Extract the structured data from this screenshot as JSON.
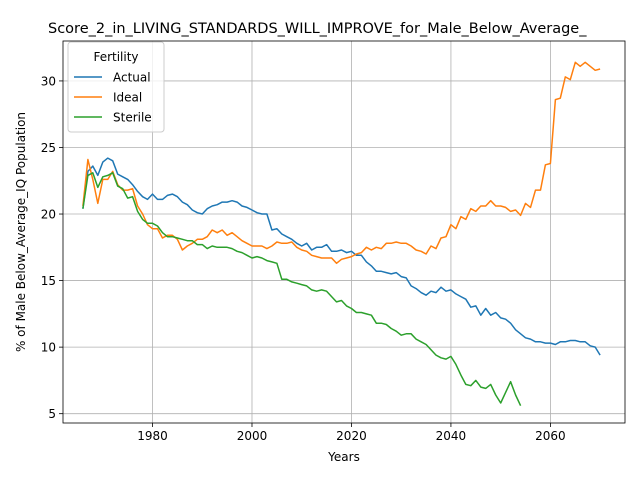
{
  "chart_data": {
    "type": "line",
    "title": "Score_2_in_LIVING_STANDARDS_WILL_IMPROVE_for_Male_Below_Average_",
    "xlabel": "Years",
    "ylabel": "% of Male Below_Average_IQ Population",
    "xlim": [
      1962,
      2075
    ],
    "ylim": [
      4.3,
      33.0
    ],
    "xticks": [
      1980,
      2000,
      2020,
      2040,
      2060
    ],
    "yticks": [
      5,
      10,
      15,
      20,
      25,
      30
    ],
    "grid": true,
    "legend": {
      "title": "Fertility",
      "placement": "upper-left"
    },
    "series": [
      {
        "name": "Actual",
        "color": "#1f77b4",
        "x": [
          1966,
          1967,
          1968,
          1969,
          1970,
          1971,
          1972,
          1973,
          1974,
          1975,
          1976,
          1977,
          1978,
          1979,
          1980,
          1981,
          1982,
          1983,
          1984,
          1985,
          1986,
          1987,
          1988,
          1989,
          1990,
          1991,
          1992,
          1993,
          1994,
          1995,
          1996,
          1997,
          1998,
          1999,
          2000,
          2001,
          2002,
          2003,
          2004,
          2005,
          2006,
          2007,
          2008,
          2009,
          2010,
          2011,
          2012,
          2013,
          2014,
          2015,
          2016,
          2017,
          2018,
          2019,
          2020,
          2021,
          2022,
          2023,
          2024,
          2025,
          2026,
          2027,
          2028,
          2029,
          2030,
          2031,
          2032,
          2033,
          2034,
          2035,
          2036,
          2037,
          2038,
          2039,
          2040,
          2041,
          2042,
          2043,
          2044,
          2045,
          2046,
          2047,
          2048,
          2049,
          2050,
          2051,
          2052,
          2053,
          2054,
          2055,
          2056,
          2057,
          2058,
          2059,
          2060,
          2061,
          2062,
          2063,
          2064,
          2065,
          2066,
          2067,
          2068,
          2069,
          2070
        ],
        "y": [
          20.4,
          23.2,
          23.6,
          22.9,
          23.9,
          24.2,
          24.0,
          23.0,
          22.8,
          22.6,
          22.2,
          21.7,
          21.3,
          21.1,
          21.5,
          21.1,
          21.1,
          21.4,
          21.5,
          21.3,
          20.9,
          20.7,
          20.3,
          20.1,
          20.0,
          20.4,
          20.6,
          20.7,
          20.9,
          20.9,
          21.0,
          20.9,
          20.6,
          20.5,
          20.3,
          20.1,
          20.0,
          20.0,
          18.8,
          18.9,
          18.5,
          18.3,
          18.1,
          17.8,
          17.6,
          17.8,
          17.3,
          17.5,
          17.5,
          17.7,
          17.2,
          17.2,
          17.3,
          17.1,
          17.2,
          16.9,
          16.9,
          16.4,
          16.1,
          15.7,
          15.7,
          15.6,
          15.5,
          15.6,
          15.3,
          15.2,
          14.6,
          14.4,
          14.1,
          13.9,
          14.2,
          14.1,
          14.5,
          14.2,
          14.3,
          14.0,
          13.8,
          13.6,
          13.0,
          13.1,
          12.4,
          12.9,
          12.4,
          12.6,
          12.2,
          12.1,
          11.8,
          11.3,
          11.0,
          10.7,
          10.6,
          10.4,
          10.4,
          10.3,
          10.3,
          10.2,
          10.4,
          10.4,
          10.5,
          10.5,
          10.4,
          10.4,
          10.1,
          10.0,
          9.4
        ]
      },
      {
        "name": "Ideal",
        "color": "#ff7f0e",
        "x": [
          1966,
          1967,
          1968,
          1969,
          1970,
          1971,
          1972,
          1973,
          1974,
          1975,
          1976,
          1977,
          1978,
          1979,
          1980,
          1981,
          1982,
          1983,
          1984,
          1985,
          1986,
          1987,
          1988,
          1989,
          1990,
          1991,
          1992,
          1993,
          1994,
          1995,
          1996,
          1997,
          1998,
          1999,
          2000,
          2001,
          2002,
          2003,
          2004,
          2005,
          2006,
          2007,
          2008,
          2009,
          2010,
          2011,
          2012,
          2013,
          2014,
          2015,
          2016,
          2017,
          2018,
          2019,
          2020,
          2021,
          2022,
          2023,
          2024,
          2025,
          2026,
          2027,
          2028,
          2029,
          2030,
          2031,
          2032,
          2033,
          2034,
          2035,
          2036,
          2037,
          2038,
          2039,
          2040,
          2041,
          2042,
          2043,
          2044,
          2045,
          2046,
          2047,
          2048,
          2049,
          2050,
          2051,
          2052,
          2053,
          2054,
          2055,
          2056,
          2057,
          2058,
          2059,
          2060,
          2061,
          2062,
          2063,
          2064,
          2065,
          2066,
          2067,
          2068,
          2069,
          2070
        ],
        "y": [
          20.6,
          24.1,
          22.6,
          20.8,
          22.6,
          22.6,
          23.2,
          22.2,
          21.8,
          21.8,
          21.9,
          20.6,
          20.0,
          19.2,
          18.9,
          18.9,
          18.2,
          18.4,
          18.4,
          18.1,
          17.3,
          17.6,
          17.8,
          18.1,
          18.1,
          18.3,
          18.8,
          18.6,
          18.8,
          18.4,
          18.6,
          18.3,
          18.0,
          17.8,
          17.6,
          17.6,
          17.6,
          17.4,
          17.6,
          17.9,
          17.8,
          17.8,
          17.9,
          17.5,
          17.3,
          17.2,
          16.9,
          16.8,
          16.7,
          16.7,
          16.7,
          16.3,
          16.6,
          16.7,
          16.8,
          17.0,
          17.1,
          17.5,
          17.3,
          17.5,
          17.4,
          17.8,
          17.8,
          17.9,
          17.8,
          17.8,
          17.6,
          17.3,
          17.2,
          17.0,
          17.6,
          17.4,
          18.2,
          18.3,
          19.2,
          18.9,
          19.8,
          19.6,
          20.4,
          20.2,
          20.6,
          20.6,
          21.0,
          20.6,
          20.6,
          20.5,
          20.2,
          20.3,
          19.9,
          20.8,
          20.5,
          21.8,
          21.8,
          23.7,
          23.8,
          28.6,
          28.7,
          30.3,
          30.1,
          31.4,
          31.1,
          31.4,
          31.1,
          30.8,
          30.9
        ]
      },
      {
        "name": "Sterile",
        "color": "#2ca02c",
        "x": [
          1966,
          1967,
          1968,
          1969,
          1970,
          1971,
          1972,
          1973,
          1974,
          1975,
          1976,
          1977,
          1978,
          1979,
          1980,
          1981,
          1982,
          1983,
          1984,
          1985,
          1986,
          1987,
          1988,
          1989,
          1990,
          1991,
          1992,
          1993,
          1994,
          1995,
          1996,
          1997,
          1998,
          1999,
          2000,
          2001,
          2002,
          2003,
          2004,
          2005,
          2006,
          2007,
          2008,
          2009,
          2010,
          2011,
          2012,
          2013,
          2014,
          2015,
          2016,
          2017,
          2018,
          2019,
          2020,
          2021,
          2022,
          2023,
          2024,
          2025,
          2026,
          2027,
          2028,
          2029,
          2030,
          2031,
          2032,
          2033,
          2034,
          2035,
          2036,
          2037,
          2038,
          2039,
          2040,
          2041,
          2042,
          2043,
          2044,
          2045,
          2046,
          2047,
          2048,
          2049,
          2050,
          2051,
          2052,
          2053,
          2054
        ],
        "y": [
          20.4,
          22.9,
          23.1,
          22.0,
          22.8,
          22.9,
          23.1,
          22.1,
          21.9,
          21.2,
          21.3,
          20.2,
          19.6,
          19.3,
          19.3,
          19.1,
          18.6,
          18.3,
          18.3,
          18.2,
          18.1,
          18.0,
          18.0,
          17.7,
          17.7,
          17.4,
          17.6,
          17.5,
          17.5,
          17.5,
          17.4,
          17.2,
          17.1,
          16.9,
          16.7,
          16.8,
          16.7,
          16.5,
          16.4,
          16.3,
          15.1,
          15.1,
          14.9,
          14.8,
          14.7,
          14.6,
          14.3,
          14.2,
          14.3,
          14.2,
          13.8,
          13.4,
          13.5,
          13.1,
          12.9,
          12.6,
          12.6,
          12.5,
          12.4,
          11.8,
          11.8,
          11.7,
          11.4,
          11.2,
          10.9,
          11.0,
          11.0,
          10.6,
          10.4,
          10.2,
          9.8,
          9.4,
          9.2,
          9.1,
          9.3,
          8.7,
          7.9,
          7.2,
          7.1,
          7.5,
          7.0,
          6.9,
          7.2,
          6.4,
          5.8,
          6.6,
          7.4,
          6.4,
          5.6
        ]
      }
    ]
  }
}
